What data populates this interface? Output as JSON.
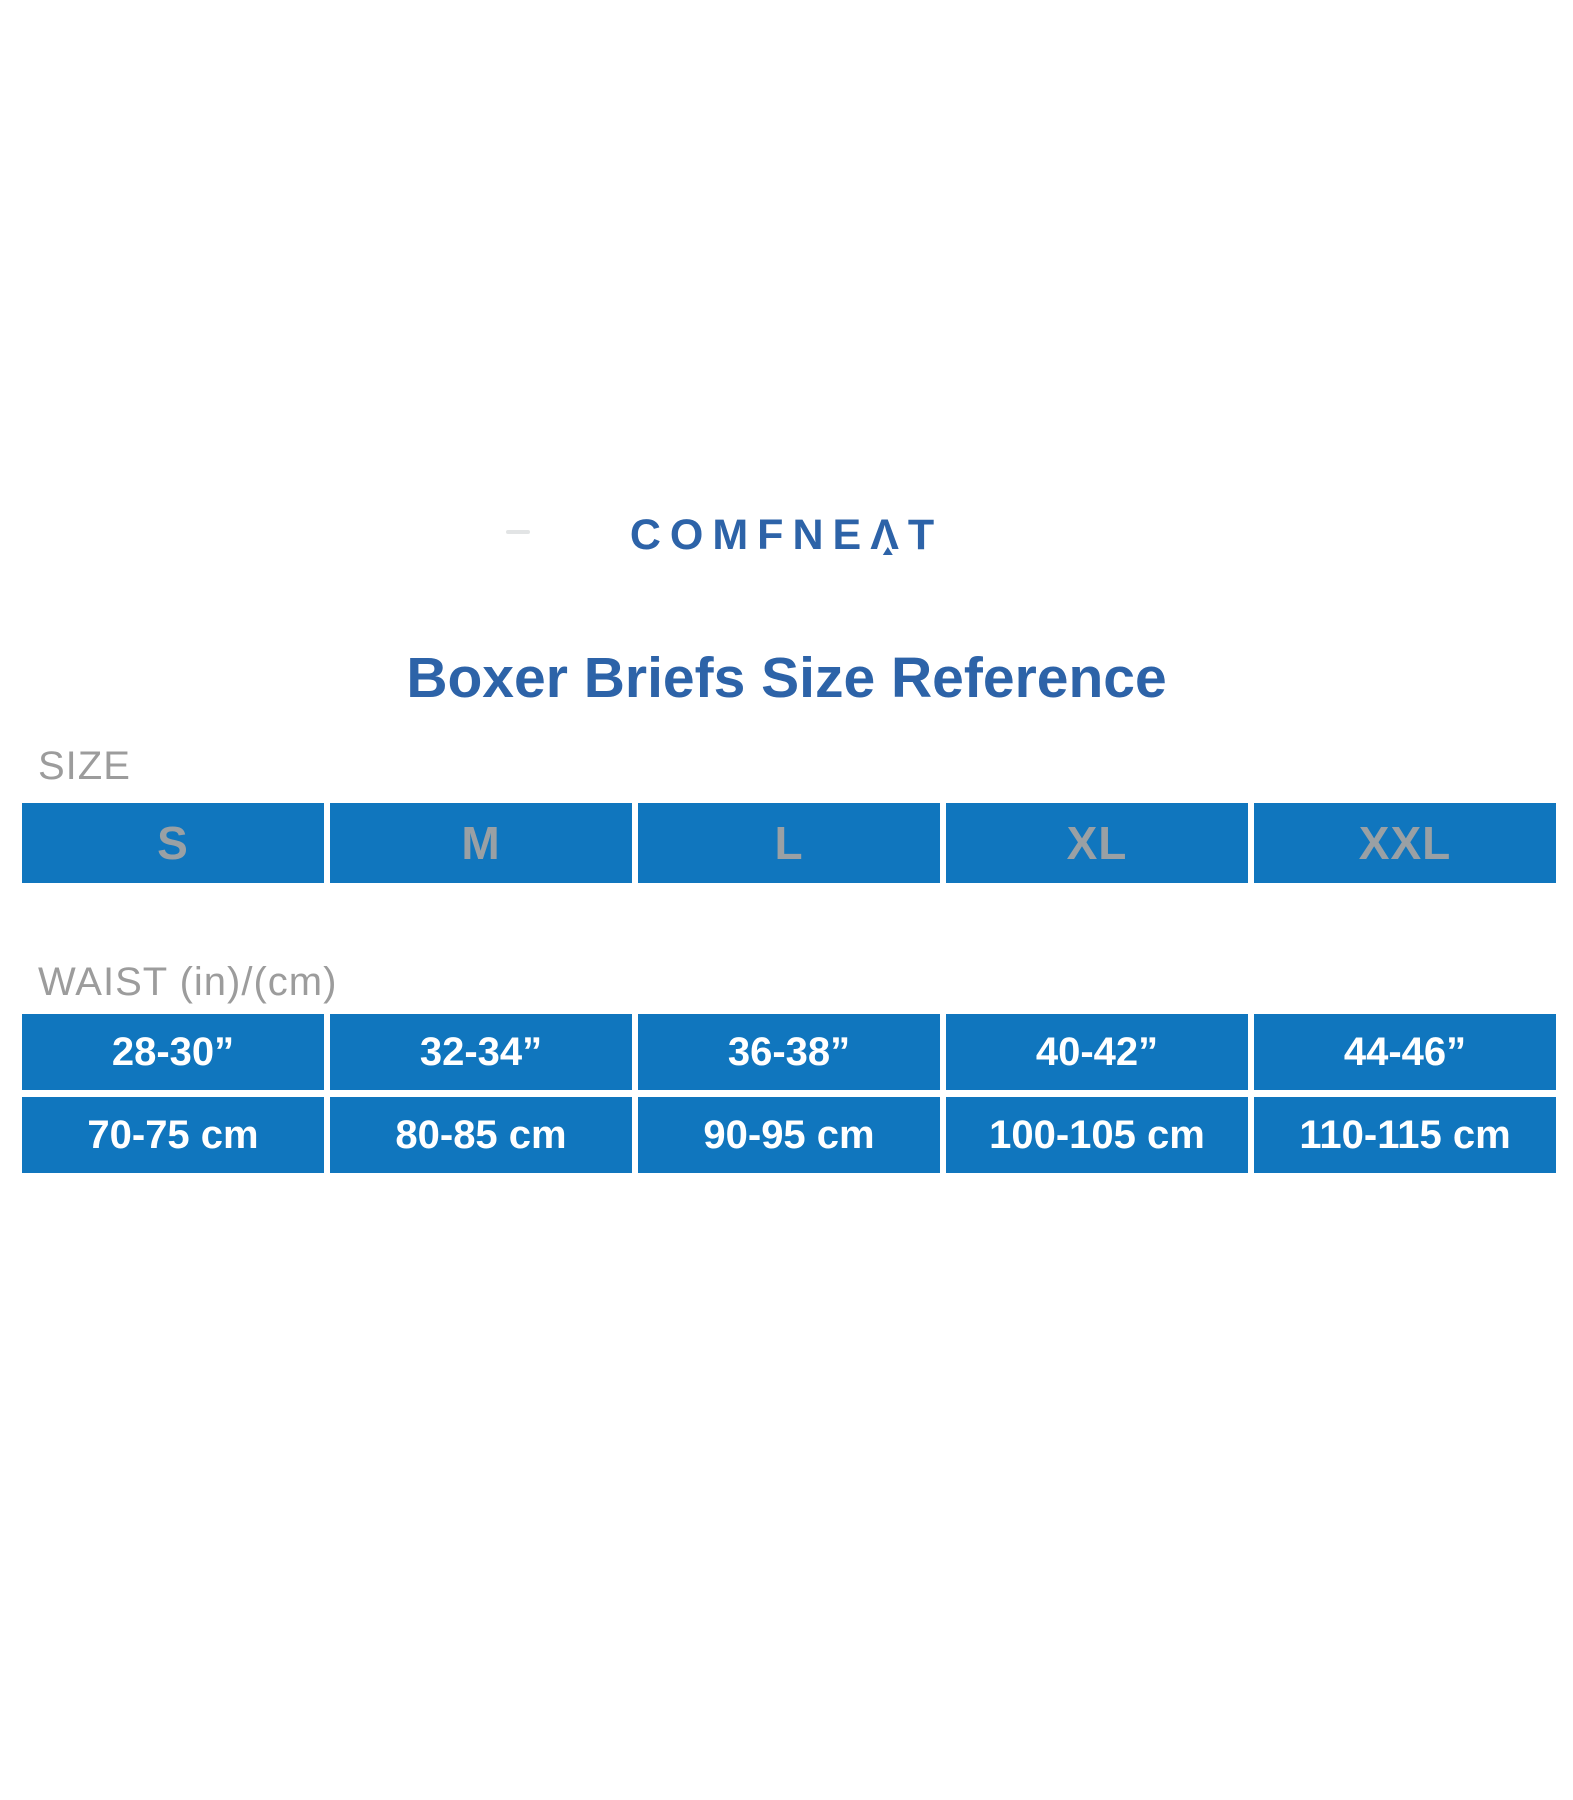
{
  "page": {
    "brand": "COMFNEAT",
    "title": "Boxer Briefs Size Reference"
  },
  "size_section": {
    "label": "SIZE",
    "sizes": [
      "S",
      "M",
      "L",
      "XL",
      "XXL"
    ]
  },
  "waist_section": {
    "label": "WAIST (in)/(cm)",
    "inches": [
      "28-30”",
      "32-34”",
      "36-38”",
      "40-42”",
      "44-46”"
    ],
    "cm": [
      "70-75 cm",
      "80-85 cm",
      "90-95 cm",
      "100-105 cm",
      "110-115 cm"
    ]
  },
  "colors": {
    "brand_blue": "#2d63a8",
    "cell_blue": "#1076be",
    "label_gray": "#9c9c9c",
    "size_text_gray": "#9aa0a4",
    "waist_text": "#ffffff"
  },
  "chart_data": {
    "type": "table",
    "title": "Boxer Briefs Size Reference",
    "columns": [
      "S",
      "M",
      "L",
      "XL",
      "XXL"
    ],
    "rows": [
      {
        "label": "WAIST (in)",
        "values": [
          "28-30”",
          "32-34”",
          "36-38”",
          "40-42”",
          "44-46”"
        ]
      },
      {
        "label": "WAIST (cm)",
        "values": [
          "70-75 cm",
          "80-85 cm",
          "90-95 cm",
          "100-105 cm",
          "110-115 cm"
        ]
      }
    ]
  }
}
